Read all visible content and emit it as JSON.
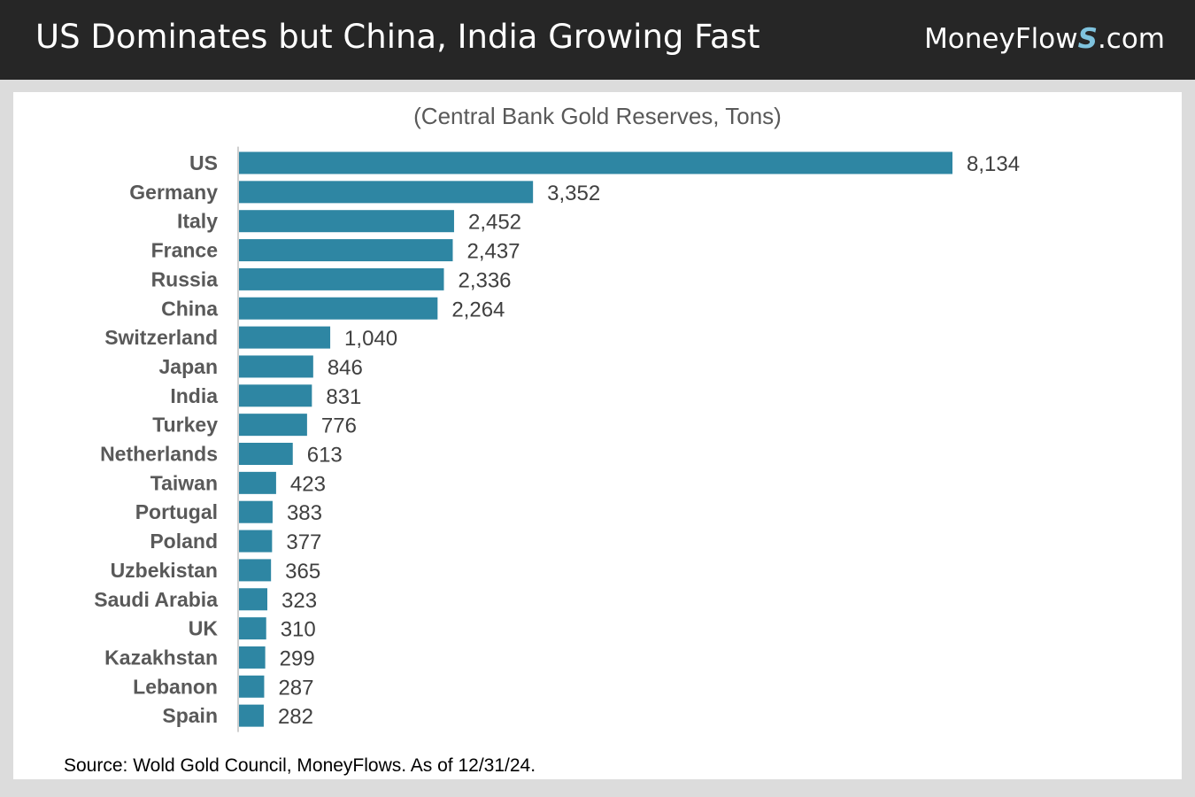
{
  "header": {
    "title": "US Dominates but China, India Growing Fast",
    "brand_prefix": "MoneyFlow",
    "brand_accent": "S",
    "brand_suffix": ".com"
  },
  "chart_data": {
    "type": "bar",
    "orientation": "horizontal",
    "title": "",
    "subtitle": "(Central Bank Gold Reserves, Tons)",
    "categories": [
      "US",
      "Germany",
      "Italy",
      "France",
      "Russia",
      "China",
      "Switzerland",
      "Japan",
      "India",
      "Turkey",
      "Netherlands",
      "Taiwan",
      "Portugal",
      "Poland",
      "Uzbekistan",
      "Saudi Arabia",
      "UK",
      "Kazakhstan",
      "Lebanon",
      "Spain"
    ],
    "values": [
      8134,
      3352,
      2452,
      2437,
      2336,
      2264,
      1040,
      846,
      831,
      776,
      613,
      423,
      383,
      377,
      365,
      323,
      310,
      299,
      287,
      282
    ],
    "value_labels": [
      "8,134",
      "3,352",
      "2,452",
      "2,437",
      "2,336",
      "2,264",
      "1,040",
      "846",
      "831",
      "776",
      "613",
      "423",
      "383",
      "377",
      "365",
      "323",
      "310",
      "299",
      "287",
      "282"
    ],
    "xlim": [
      0,
      8134
    ],
    "xlabel": "",
    "ylabel": "",
    "grid": false,
    "legend": "none",
    "bar_color": "#2e86a3"
  },
  "footer": {
    "source": "Source: Wold Gold Council, MoneyFlows. As of 12/31/24."
  },
  "colors": {
    "header_bg": "#262626",
    "page_bg": "#dcdcdc",
    "panel_bg": "#ffffff",
    "bar": "#2e86a3",
    "category_text": "#595959",
    "value_text": "#404040",
    "brand_accent": "#7fc3de"
  }
}
